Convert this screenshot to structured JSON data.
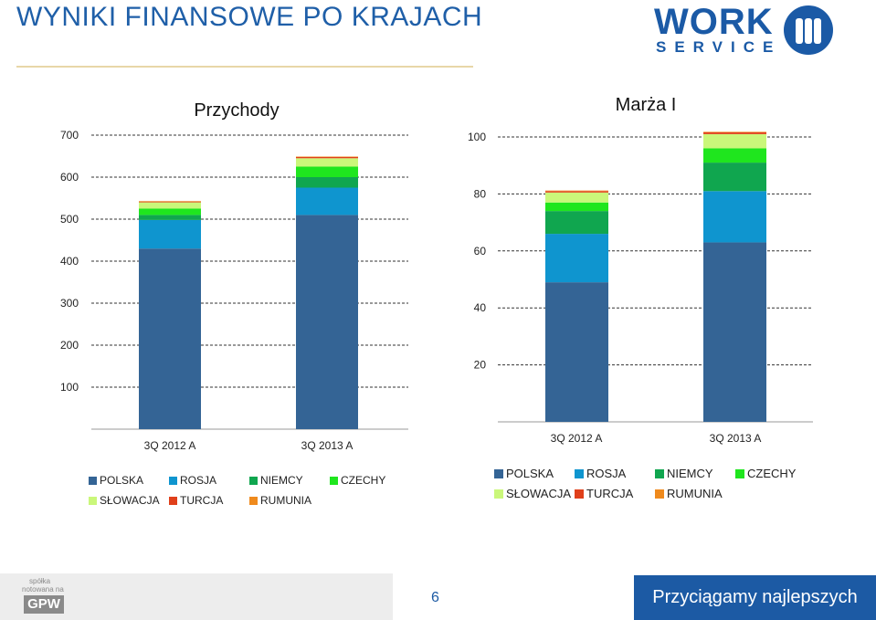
{
  "page": {
    "title": "WYNIKI FINANSOWE PO KRAJACH",
    "page_number": "6",
    "slogan": "Przyciągamy najlepszych",
    "logo": {
      "line1": "WORK",
      "line2": "SERVICE"
    },
    "badge": {
      "line1": "spółka",
      "line2": "notowana na",
      "line3": "GPW"
    }
  },
  "colors": {
    "POLSKA": "#346495",
    "ROSJA": "#0f95cf",
    "NIEMCY": "#10a64f",
    "CZECHY": "#1fe61e",
    "SŁOWACJA": "#caf77a",
    "TURCJA": "#e0401b",
    "RUMUNIA": "#ef8a1d"
  },
  "chart_data": [
    {
      "type": "bar",
      "stacked": true,
      "title": "Przychody",
      "categories": [
        "3Q 2012 A",
        "3Q 2013 A"
      ],
      "ylim": [
        0,
        700
      ],
      "yticks": [
        100,
        200,
        300,
        400,
        500,
        600,
        700
      ],
      "grid": true,
      "legend_position": "bottom",
      "series": [
        {
          "name": "POLSKA",
          "values": [
            430,
            510
          ]
        },
        {
          "name": "ROSJA",
          "values": [
            68,
            65
          ]
        },
        {
          "name": "NIEMCY",
          "values": [
            12,
            25
          ]
        },
        {
          "name": "CZECHY",
          "values": [
            15,
            25
          ]
        },
        {
          "name": "SŁOWACJA",
          "values": [
            15,
            20
          ]
        },
        {
          "name": "TURCJA",
          "values": [
            2,
            3
          ]
        },
        {
          "name": "RUMUNIA",
          "values": [
            1,
            1
          ]
        }
      ]
    },
    {
      "type": "bar",
      "stacked": true,
      "title": "Marża I",
      "categories": [
        "3Q 2012 A",
        "3Q 2013 A"
      ],
      "ylim": [
        0,
        100
      ],
      "yticks": [
        20,
        40,
        60,
        80,
        100
      ],
      "grid": true,
      "legend_position": "bottom",
      "series": [
        {
          "name": "POLSKA",
          "values": [
            49,
            63
          ]
        },
        {
          "name": "ROSJA",
          "values": [
            17,
            18
          ]
        },
        {
          "name": "NIEMCY",
          "values": [
            8,
            10
          ]
        },
        {
          "name": "CZECHY",
          "values": [
            3,
            5
          ]
        },
        {
          "name": "SŁOWACJA",
          "values": [
            3.5,
            5
          ]
        },
        {
          "name": "TURCJA",
          "values": [
            0.5,
            0.6
          ]
        },
        {
          "name": "RUMUNIA",
          "values": [
            0.2,
            0.2
          ]
        }
      ]
    }
  ]
}
